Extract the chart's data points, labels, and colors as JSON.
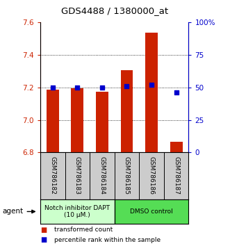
{
  "title": "GDS4488 / 1380000_at",
  "samples": [
    "GSM786182",
    "GSM786183",
    "GSM786184",
    "GSM786185",
    "GSM786186",
    "GSM786187"
  ],
  "bar_bottoms": [
    6.8,
    6.8,
    6.8,
    6.8,
    6.8,
    6.8
  ],
  "bar_tops": [
    7.185,
    7.195,
    7.175,
    7.305,
    7.535,
    6.865
  ],
  "bar_color": "#cc2200",
  "dot_percentiles": [
    50,
    50,
    50,
    51,
    52,
    46
  ],
  "dot_color": "#0000cc",
  "ylim": [
    6.8,
    7.6
  ],
  "y_ticks_left": [
    6.8,
    7.0,
    7.2,
    7.4,
    7.6
  ],
  "y_ticks_right": [
    0,
    25,
    50,
    75,
    100
  ],
  "y_ticks_right_labels": [
    "0",
    "25",
    "50",
    "75",
    "100%"
  ],
  "left_color": "#cc2200",
  "right_color": "#0000cc",
  "group1_label": "Notch inhibitor DAPT\n(10 μM.)",
  "group2_label": "DMSO control",
  "group1_color": "#ccffcc",
  "group2_color": "#55dd55",
  "agent_label": "agent",
  "legend_bar_label": "transformed count",
  "legend_dot_label": "percentile rank within the sample",
  "background_color": "#ffffff",
  "sample_bg_color": "#cccccc",
  "bar_width": 0.5
}
